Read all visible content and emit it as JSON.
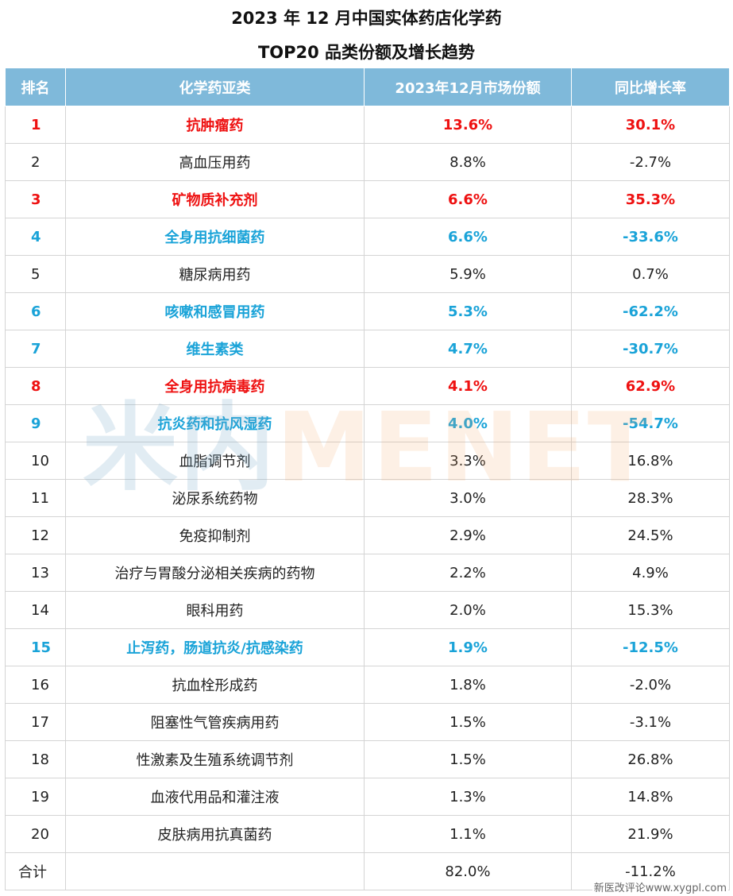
{
  "title_line1": "2023 年 12 月中国实体药店化学药",
  "title_line2": "TOP20 品类份额及增长趋势",
  "headers": [
    "排名",
    "化学药亚类",
    "2023年12月市场份额",
    "同比增长率"
  ],
  "rows": [
    {
      "rank": "1",
      "name": "抗肿瘤药",
      "share": "13.6%",
      "growth": "30.1%",
      "highlight": "red"
    },
    {
      "rank": "2",
      "name": "高血压用药",
      "share": "8.8%",
      "growth": "-2.7%",
      "highlight": "none"
    },
    {
      "rank": "3",
      "name": "矿物质补充剂",
      "share": "6.6%",
      "growth": "35.3%",
      "highlight": "red"
    },
    {
      "rank": "4",
      "name": "全身用抗细菌药",
      "share": "6.6%",
      "growth": "-33.6%",
      "highlight": "blue"
    },
    {
      "rank": "5",
      "name": "糖尿病用药",
      "share": "5.9%",
      "growth": "0.7%",
      "highlight": "none"
    },
    {
      "rank": "6",
      "name": "咳嗽和感冒用药",
      "share": "5.3%",
      "growth": "-62.2%",
      "highlight": "blue"
    },
    {
      "rank": "7",
      "name": "维生素类",
      "share": "4.7%",
      "growth": "-30.7%",
      "highlight": "blue"
    },
    {
      "rank": "8",
      "name": "全身用抗病毒药",
      "share": "4.1%",
      "growth": "62.9%",
      "highlight": "red"
    },
    {
      "rank": "9",
      "name": "抗炎药和抗风湿药",
      "share": "4.0%",
      "growth": "-54.7%",
      "highlight": "blue"
    },
    {
      "rank": "10",
      "name": "血脂调节剂",
      "share": "3.3%",
      "growth": "16.8%",
      "highlight": "none"
    },
    {
      "rank": "11",
      "name": "泌尿系统药物",
      "share": "3.0%",
      "growth": "28.3%",
      "highlight": "none"
    },
    {
      "rank": "12",
      "name": "免疫抑制剂",
      "share": "2.9%",
      "growth": "24.5%",
      "highlight": "none"
    },
    {
      "rank": "13",
      "name": "治疗与胃酸分泌相关疾病的药物",
      "share": "2.2%",
      "growth": "4.9%",
      "highlight": "none"
    },
    {
      "rank": "14",
      "name": "眼科用药",
      "share": "2.0%",
      "growth": "15.3%",
      "highlight": "none"
    },
    {
      "rank": "15",
      "name": "止泻药，肠道抗炎/抗感染药",
      "share": "1.9%",
      "growth": "-12.5%",
      "highlight": "blue"
    },
    {
      "rank": "16",
      "name": "抗血栓形成药",
      "share": "1.8%",
      "growth": "-2.0%",
      "highlight": "none"
    },
    {
      "rank": "17",
      "name": "阻塞性气管疾病用药",
      "share": "1.5%",
      "growth": "-3.1%",
      "highlight": "none"
    },
    {
      "rank": "18",
      "name": "性激素及生殖系统调节剂",
      "share": "1.5%",
      "growth": "26.8%",
      "highlight": "none"
    },
    {
      "rank": "19",
      "name": "血液代用品和灌注液",
      "share": "1.3%",
      "growth": "14.8%",
      "highlight": "none"
    },
    {
      "rank": "20",
      "name": "皮肤病用抗真菌药",
      "share": "1.1%",
      "growth": "21.9%",
      "highlight": "none"
    }
  ],
  "total": {
    "label": "合计",
    "name": "",
    "share": "82.0%",
    "growth": "-11.2%"
  },
  "watermark": {
    "cn": "米内",
    "en": "MENET"
  },
  "corner_text": "新医改评论www.xygpl.com",
  "colors": {
    "header_bg": "#7fb9da",
    "highlight_red": "#ee1111",
    "highlight_blue": "#1aa3d8"
  }
}
